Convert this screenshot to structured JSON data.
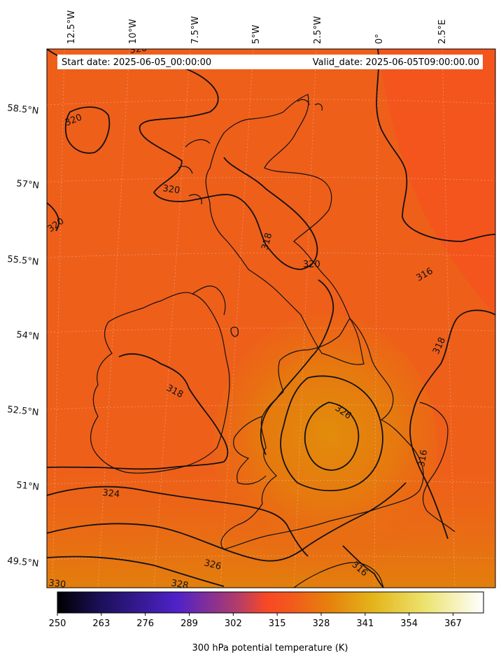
{
  "header": {
    "start_label": "Start date: 2025-06-05_00:00:00",
    "valid_label": "Valid_date: 2025-06-05T09:00:00.00"
  },
  "lon_labels": [
    "12.5°W",
    "10°W",
    "7.5°W",
    "5°W",
    "2.5°W",
    "0°",
    "2.5°E"
  ],
  "lat_labels": [
    "58.5°N",
    "57°N",
    "55.5°N",
    "54°N",
    "52.5°N",
    "51°N",
    "49.5°N"
  ],
  "contour_labels": [
    "320",
    "320",
    "320",
    "320",
    "318",
    "320",
    "316",
    "318",
    "318",
    "326",
    "316",
    "324",
    "326",
    "328",
    "330",
    "316",
    "320",
    "324"
  ],
  "colorbar": {
    "title": "300 hPa potential temperature (K)",
    "ticks": [
      "250",
      "263",
      "276",
      "289",
      "302",
      "315",
      "328",
      "341",
      "354",
      "367"
    ],
    "min": 250,
    "max": 376,
    "colors": [
      "#000000",
      "#1a0f4a",
      "#4d22c9",
      "#a83a7e",
      "#fb4626",
      "#ff5a1f",
      "#e38d0c",
      "#e4b21c",
      "#ede878",
      "#ffffff"
    ]
  },
  "field_colors": {
    "base": "#ee5f1a",
    "warm": "#e27f0e",
    "cool": "#f4521f"
  }
}
